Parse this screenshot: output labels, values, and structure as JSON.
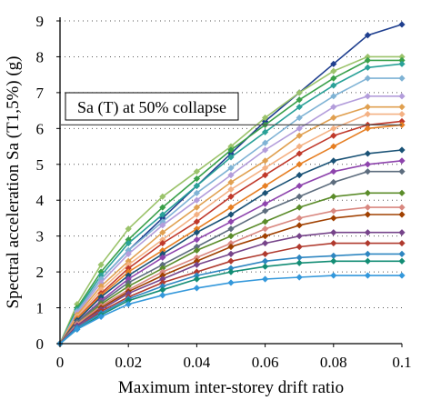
{
  "chart_data": {
    "type": "line",
    "title": "",
    "xlabel": "Maximum inter-storey drift ratio",
    "ylabel": "Spectral acceleration Sa (T1,5%) (g)",
    "xlim": [
      0,
      0.1
    ],
    "ylim": [
      0,
      9
    ],
    "xticks": [
      "0",
      "0.02",
      "0.04",
      "0.06",
      "0.08",
      "0.1"
    ],
    "yticks": [
      "0",
      "1",
      "2",
      "3",
      "4",
      "5",
      "6",
      "7",
      "8",
      "9"
    ],
    "grid": "horizontal dotted",
    "annotation": {
      "text": "Sa (T) at 50% collapse",
      "y": 6.1
    },
    "series": [
      {
        "color": "#1f3f8f",
        "x": [
          0,
          0.005,
          0.012,
          0.02,
          0.03,
          0.04,
          0.05,
          0.06,
          0.07,
          0.08,
          0.09,
          0.1
        ],
        "y": [
          0,
          0.9,
          1.8,
          2.6,
          3.5,
          4.4,
          5.3,
          6.2,
          7.0,
          7.8,
          8.6,
          8.9
        ]
      },
      {
        "color": "#9bc36b",
        "x": [
          0,
          0.005,
          0.012,
          0.02,
          0.03,
          0.04,
          0.05,
          0.06,
          0.07,
          0.08,
          0.09,
          0.1
        ],
        "y": [
          0,
          1.1,
          2.2,
          3.2,
          4.1,
          4.8,
          5.5,
          6.3,
          7.0,
          7.6,
          8.0,
          8.0
        ]
      },
      {
        "color": "#3aa04a",
        "x": [
          0,
          0.005,
          0.012,
          0.02,
          0.03,
          0.04,
          0.05,
          0.06,
          0.07,
          0.08,
          0.09,
          0.1
        ],
        "y": [
          0,
          1.0,
          2.0,
          2.9,
          3.8,
          4.6,
          5.4,
          6.1,
          6.8,
          7.4,
          7.9,
          7.9
        ]
      },
      {
        "color": "#2aa198",
        "x": [
          0,
          0.005,
          0.012,
          0.02,
          0.03,
          0.04,
          0.05,
          0.06,
          0.07,
          0.08,
          0.09,
          0.1
        ],
        "y": [
          0,
          0.95,
          1.9,
          2.8,
          3.6,
          4.4,
          5.2,
          5.9,
          6.6,
          7.2,
          7.7,
          7.8
        ]
      },
      {
        "color": "#7fb3d5",
        "x": [
          0,
          0.005,
          0.012,
          0.02,
          0.03,
          0.04,
          0.05,
          0.06,
          0.07,
          0.08,
          0.09,
          0.1
        ],
        "y": [
          0,
          0.9,
          1.8,
          2.6,
          3.4,
          4.2,
          4.9,
          5.6,
          6.3,
          6.9,
          7.4,
          7.4
        ]
      },
      {
        "color": "#b39ddb",
        "x": [
          0,
          0.005,
          0.012,
          0.02,
          0.03,
          0.04,
          0.05,
          0.06,
          0.07,
          0.08,
          0.09,
          0.1
        ],
        "y": [
          0,
          0.85,
          1.7,
          2.5,
          3.3,
          4.0,
          4.7,
          5.4,
          6.0,
          6.6,
          6.9,
          6.9
        ]
      },
      {
        "color": "#e0a050",
        "x": [
          0,
          0.005,
          0.012,
          0.02,
          0.03,
          0.04,
          0.05,
          0.06,
          0.07,
          0.08,
          0.09,
          0.1
        ],
        "y": [
          0,
          0.8,
          1.6,
          2.3,
          3.1,
          3.8,
          4.5,
          5.1,
          5.8,
          6.3,
          6.6,
          6.6
        ]
      },
      {
        "color": "#f4b183",
        "x": [
          0,
          0.005,
          0.012,
          0.02,
          0.03,
          0.04,
          0.05,
          0.06,
          0.07,
          0.08,
          0.09,
          0.1
        ],
        "y": [
          0,
          0.75,
          1.5,
          2.2,
          2.9,
          3.6,
          4.3,
          4.9,
          5.5,
          6.0,
          6.4,
          6.4
        ]
      },
      {
        "color": "#c0392b",
        "x": [
          0,
          0.005,
          0.012,
          0.02,
          0.03,
          0.04,
          0.05,
          0.06,
          0.07,
          0.08,
          0.09,
          0.1
        ],
        "y": [
          0,
          0.7,
          1.4,
          2.1,
          2.8,
          3.4,
          4.1,
          4.7,
          5.3,
          5.8,
          6.1,
          6.2
        ]
      },
      {
        "color": "#e67e22",
        "x": [
          0,
          0.005,
          0.012,
          0.02,
          0.03,
          0.04,
          0.05,
          0.06,
          0.07,
          0.08,
          0.09,
          0.1
        ],
        "y": [
          0,
          0.7,
          1.35,
          2.0,
          2.6,
          3.2,
          3.8,
          4.4,
          5.0,
          5.5,
          6.0,
          6.1
        ]
      },
      {
        "color": "#1a5276",
        "x": [
          0,
          0.005,
          0.012,
          0.02,
          0.03,
          0.04,
          0.05,
          0.06,
          0.07,
          0.08,
          0.09,
          0.1
        ],
        "y": [
          0,
          0.65,
          1.3,
          1.9,
          2.5,
          3.1,
          3.6,
          4.2,
          4.7,
          5.1,
          5.3,
          5.4
        ]
      },
      {
        "color": "#8e44ad",
        "x": [
          0,
          0.005,
          0.012,
          0.02,
          0.03,
          0.04,
          0.05,
          0.06,
          0.07,
          0.08,
          0.09,
          0.1
        ],
        "y": [
          0,
          0.6,
          1.2,
          1.8,
          2.4,
          2.9,
          3.4,
          3.9,
          4.4,
          4.8,
          5.0,
          5.1
        ]
      },
      {
        "color": "#5d6d7e",
        "x": [
          0,
          0.005,
          0.012,
          0.02,
          0.03,
          0.04,
          0.05,
          0.06,
          0.07,
          0.08,
          0.09,
          0.1
        ],
        "y": [
          0,
          0.6,
          1.15,
          1.7,
          2.2,
          2.7,
          3.2,
          3.7,
          4.1,
          4.5,
          4.8,
          4.8
        ]
      },
      {
        "color": "#5b8c2a",
        "x": [
          0,
          0.005,
          0.012,
          0.02,
          0.03,
          0.04,
          0.05,
          0.06,
          0.07,
          0.08,
          0.09,
          0.1
        ],
        "y": [
          0,
          0.55,
          1.1,
          1.6,
          2.1,
          2.6,
          3.0,
          3.4,
          3.8,
          4.1,
          4.2,
          4.2
        ]
      },
      {
        "color": "#d98880",
        "x": [
          0,
          0.005,
          0.012,
          0.02,
          0.03,
          0.04,
          0.05,
          0.06,
          0.07,
          0.08,
          0.09,
          0.1
        ],
        "y": [
          0,
          0.55,
          1.05,
          1.5,
          2.0,
          2.4,
          2.8,
          3.2,
          3.5,
          3.7,
          3.8,
          3.8
        ]
      },
      {
        "color": "#a04000",
        "x": [
          0,
          0.005,
          0.012,
          0.02,
          0.03,
          0.04,
          0.05,
          0.06,
          0.07,
          0.08,
          0.09,
          0.1
        ],
        "y": [
          0,
          0.5,
          1.0,
          1.45,
          1.9,
          2.3,
          2.7,
          3.0,
          3.3,
          3.5,
          3.6,
          3.6
        ]
      },
      {
        "color": "#76448a",
        "x": [
          0,
          0.005,
          0.012,
          0.02,
          0.03,
          0.04,
          0.05,
          0.06,
          0.07,
          0.08,
          0.09,
          0.1
        ],
        "y": [
          0,
          0.5,
          0.95,
          1.4,
          1.8,
          2.2,
          2.5,
          2.8,
          3.0,
          3.1,
          3.1,
          3.1
        ]
      },
      {
        "color": "#b03a2e",
        "x": [
          0,
          0.005,
          0.012,
          0.02,
          0.03,
          0.04,
          0.05,
          0.06,
          0.07,
          0.08,
          0.09,
          0.1
        ],
        "y": [
          0,
          0.45,
          0.9,
          1.3,
          1.7,
          2.0,
          2.3,
          2.5,
          2.7,
          2.8,
          2.8,
          2.8
        ]
      },
      {
        "color": "#2e86c1",
        "x": [
          0,
          0.005,
          0.012,
          0.02,
          0.03,
          0.04,
          0.05,
          0.06,
          0.07,
          0.08,
          0.09,
          0.1
        ],
        "y": [
          0,
          0.45,
          0.85,
          1.25,
          1.6,
          1.9,
          2.1,
          2.3,
          2.4,
          2.45,
          2.5,
          2.5
        ]
      },
      {
        "color": "#138d75",
        "x": [
          0,
          0.005,
          0.012,
          0.02,
          0.03,
          0.04,
          0.05,
          0.06,
          0.07,
          0.08,
          0.09,
          0.1
        ],
        "y": [
          0,
          0.4,
          0.8,
          1.2,
          1.5,
          1.8,
          2.0,
          2.15,
          2.25,
          2.3,
          2.3,
          2.3
        ]
      },
      {
        "color": "#3498db",
        "x": [
          0,
          0.005,
          0.012,
          0.02,
          0.03,
          0.04,
          0.05,
          0.06,
          0.07,
          0.08,
          0.09,
          0.1
        ],
        "y": [
          0,
          0.4,
          0.75,
          1.1,
          1.35,
          1.55,
          1.7,
          1.8,
          1.85,
          1.9,
          1.9,
          1.9
        ]
      }
    ]
  }
}
